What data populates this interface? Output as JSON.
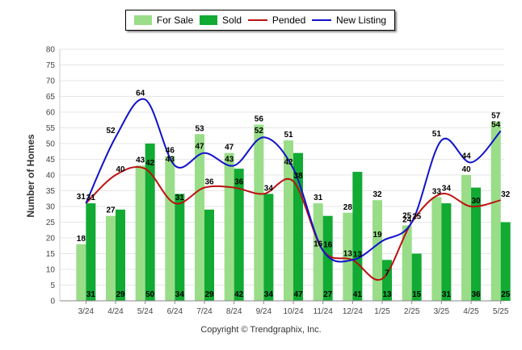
{
  "legend": {
    "for_sale": "For Sale",
    "sold": "Sold",
    "pended": "Pended",
    "new_listing": "New Listing"
  },
  "y_axis_title": "Number of Homes",
  "copyright": "Copyright © Trendgraphix, Inc.",
  "colors": {
    "for_sale": "#99dd88",
    "sold": "#11aa33",
    "pended": "#bb1111",
    "new_listing": "#1111cc"
  },
  "chart_data": {
    "type": "bar",
    "categories": [
      "3/24",
      "4/24",
      "5/24",
      "6/24",
      "7/24",
      "8/24",
      "9/24",
      "10/24",
      "11/24",
      "12/24",
      "1/25",
      "2/25",
      "3/25",
      "4/25",
      "5/25"
    ],
    "ylabel": "Number of Homes",
    "ylim": [
      0,
      80
    ],
    "yticks": [
      0,
      5,
      10,
      15,
      20,
      25,
      30,
      35,
      40,
      45,
      50,
      55,
      60,
      65,
      70,
      75,
      80
    ],
    "grid": true,
    "legend_position": "top",
    "series": [
      {
        "name": "For Sale",
        "type": "bar",
        "values": [
          18,
          27,
          43,
          46,
          53,
          47,
          56,
          51,
          31,
          28,
          32,
          24,
          33,
          40,
          57
        ]
      },
      {
        "name": "Sold",
        "type": "bar",
        "values": [
          31,
          29,
          50,
          34,
          29,
          42,
          34,
          47,
          27,
          41,
          13,
          15,
          31,
          36,
          25
        ]
      },
      {
        "name": "Pended",
        "type": "line",
        "values": [
          31,
          40,
          42,
          31,
          36,
          36,
          34,
          38,
          16,
          13,
          7,
          25,
          34,
          30,
          32
        ]
      },
      {
        "name": "New Listing",
        "type": "line",
        "values": [
          31,
          52,
          64,
          43,
          47,
          43,
          52,
          42,
          16,
          13,
          19,
          25,
          51,
          44,
          54
        ]
      }
    ]
  }
}
